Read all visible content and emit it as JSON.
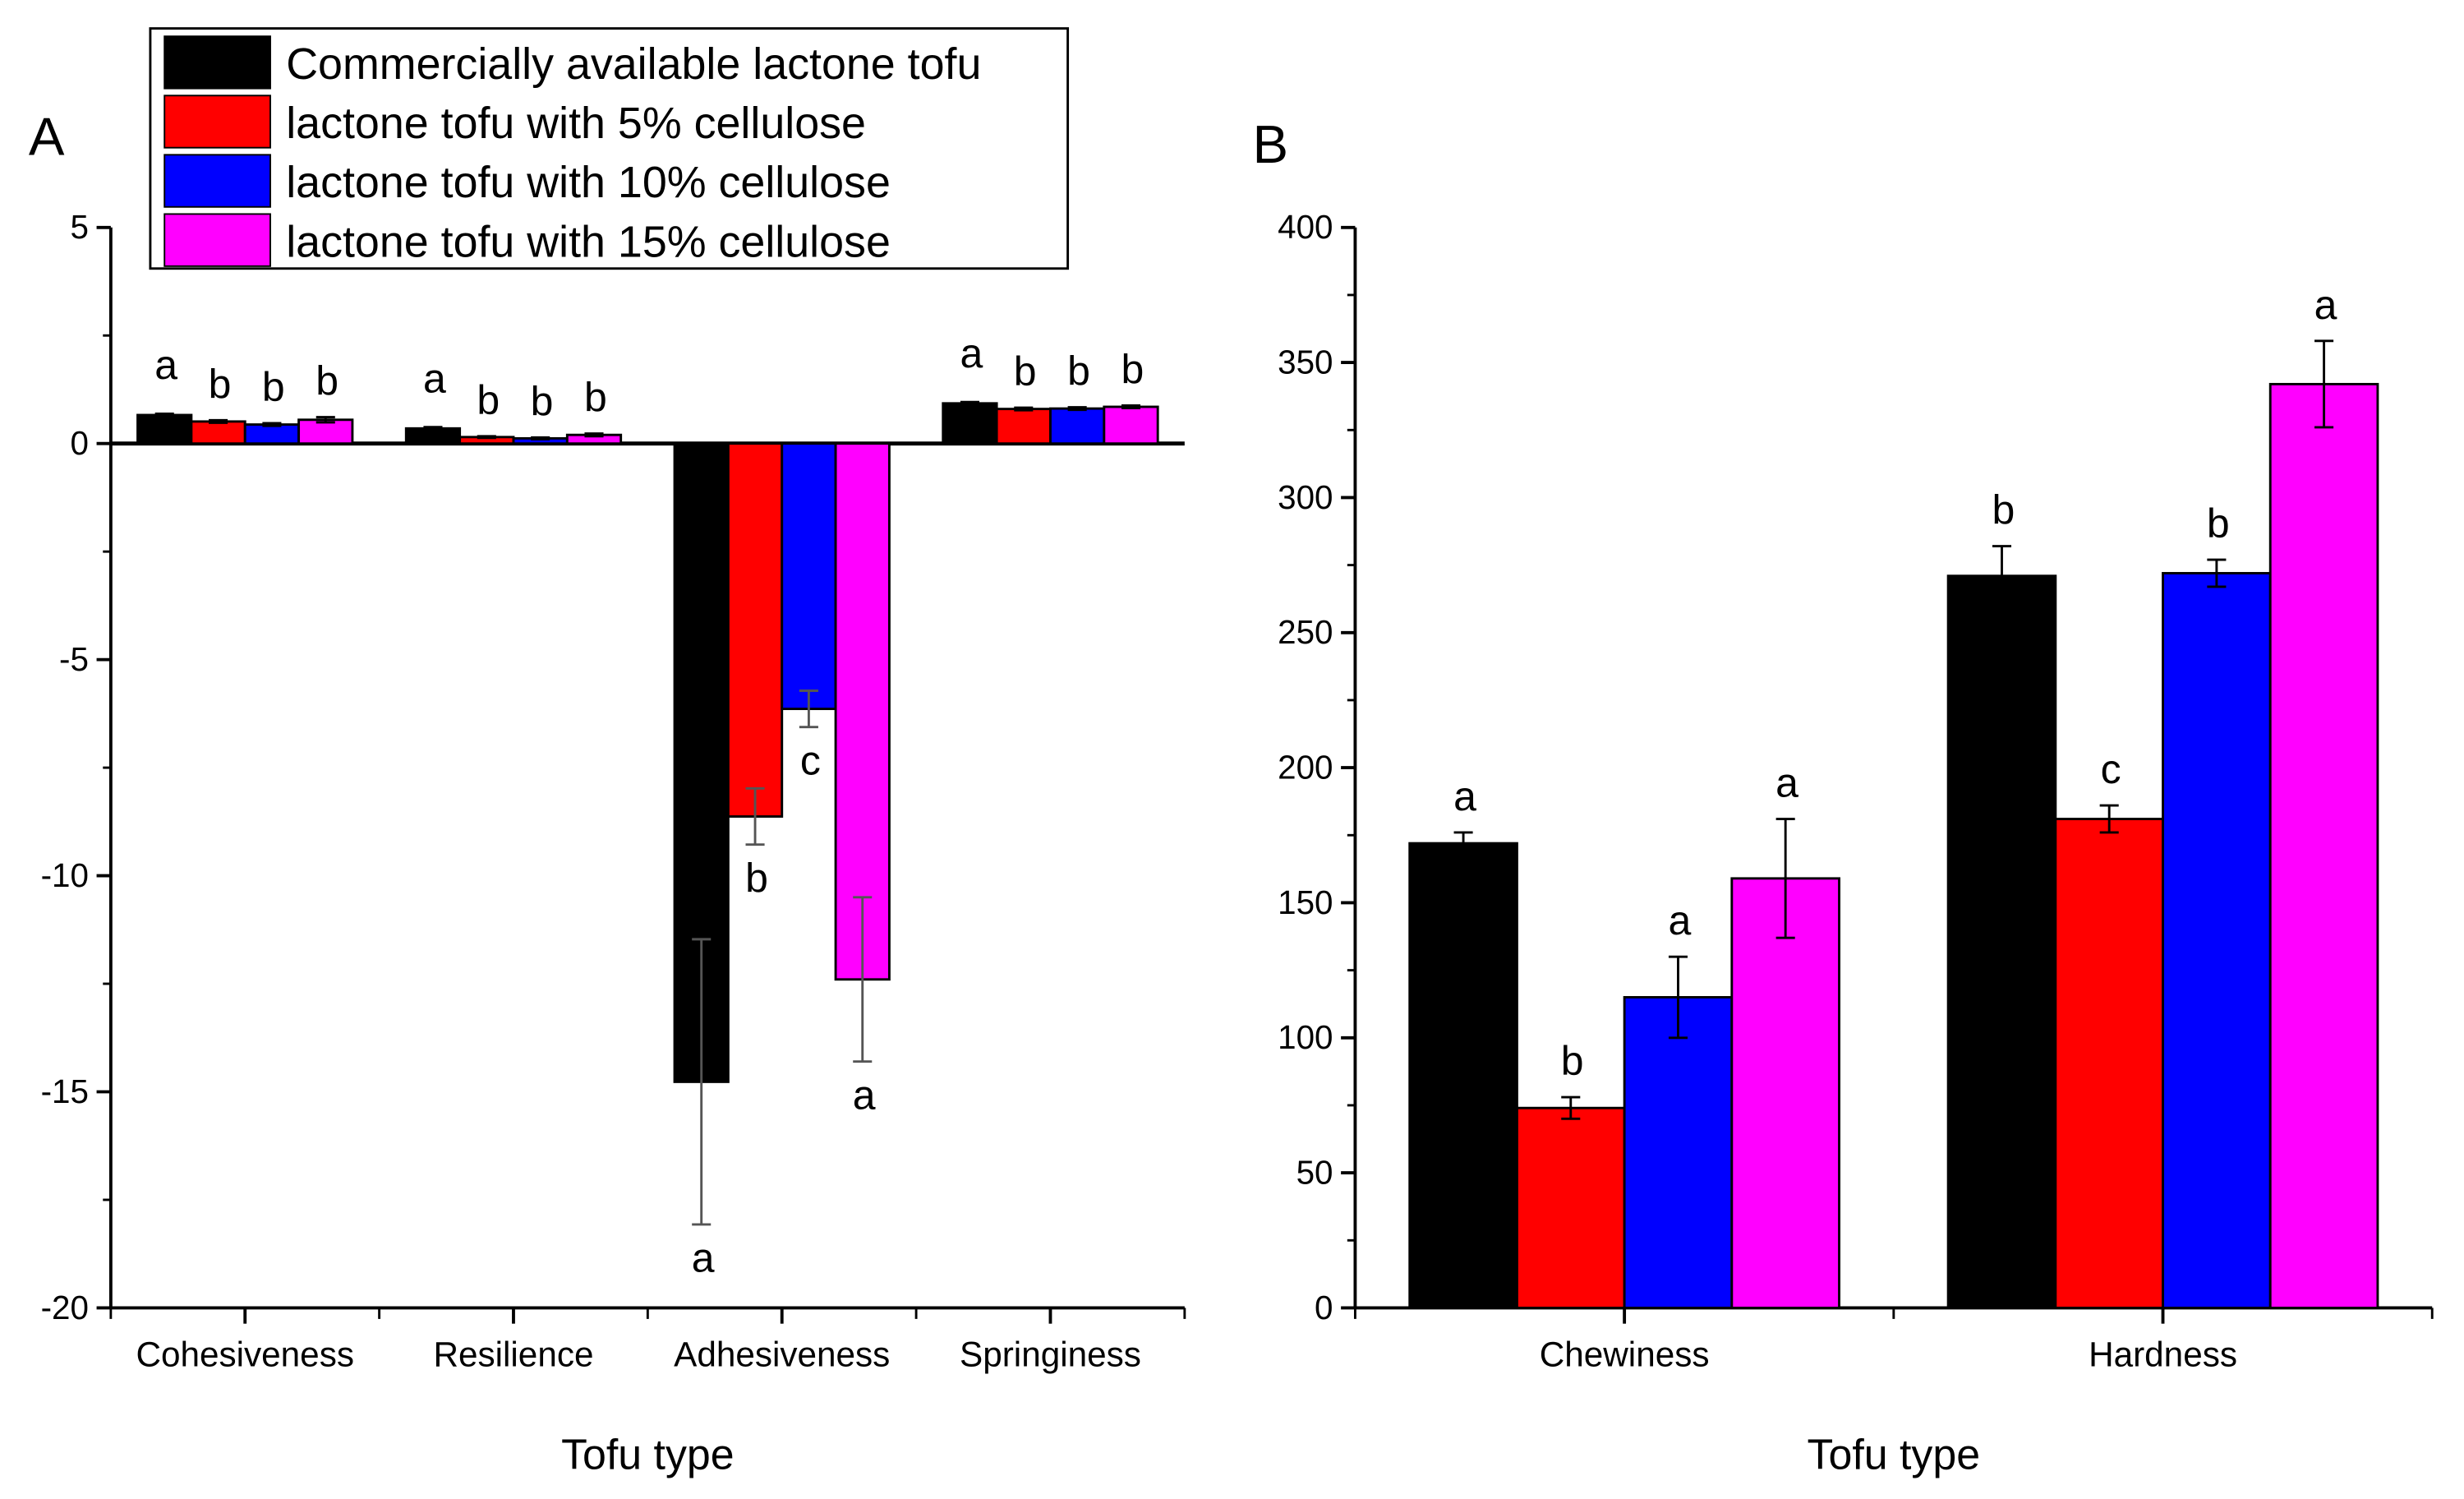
{
  "legend": {
    "entries": [
      {
        "label": "Commercially available lactone tofu",
        "color": "#000000"
      },
      {
        "label": "lactone tofu with 5% cellulose",
        "color": "#ff0000"
      },
      {
        "label": "lactone tofu with 10% cellulose",
        "color": "#0000ff"
      },
      {
        "label": "lactone tofu with 15% cellulose",
        "color": "#ff00ff"
      }
    ],
    "placement": "top-left"
  },
  "chart_data": [
    {
      "panel": "A",
      "type": "bar",
      "xlabel": "Tofu type",
      "ylabel": "",
      "ylim": [
        -20,
        5
      ],
      "yticks": [
        5,
        0,
        -5,
        -10,
        -15,
        -20
      ],
      "categories": [
        "Cohesiveness",
        "Resilience",
        "Adhesiveness",
        "Springiness"
      ],
      "series": [
        {
          "name": "Commercially available lactone tofu",
          "values": [
            0.66,
            0.35,
            -14.77,
            0.93
          ],
          "errors": [
            0.03,
            0.03,
            3.3,
            0.03
          ],
          "letters": [
            "a",
            "a",
            "a",
            "a"
          ]
        },
        {
          "name": "lactone tofu with 5% cellulose",
          "values": [
            0.51,
            0.15,
            -8.63,
            0.8
          ],
          "errors": [
            0.03,
            0.02,
            0.65,
            0.03
          ],
          "letters": [
            "b",
            "b",
            "b",
            "b"
          ]
        },
        {
          "name": "lactone tofu with 10% cellulose",
          "values": [
            0.44,
            0.12,
            -6.14,
            0.81
          ],
          "errors": [
            0.03,
            0.02,
            0.42,
            0.03
          ],
          "letters": [
            "b",
            "b",
            "c",
            "b"
          ]
        },
        {
          "name": "lactone tofu with 15% cellulose",
          "values": [
            0.55,
            0.2,
            -12.4,
            0.85
          ],
          "errors": [
            0.06,
            0.03,
            1.9,
            0.03
          ],
          "letters": [
            "b",
            "b",
            "a",
            "b"
          ]
        }
      ]
    },
    {
      "panel": "B",
      "type": "bar",
      "xlabel": "Tofu type",
      "ylabel": "",
      "ylim": [
        0,
        400
      ],
      "yticks": [
        0,
        50,
        100,
        150,
        200,
        250,
        300,
        350,
        400
      ],
      "categories": [
        "Chewiness",
        "Hardness"
      ],
      "series": [
        {
          "name": "Commercially available lactone tofu",
          "values": [
            172,
            271
          ],
          "errors": [
            4,
            11
          ],
          "letters": [
            "a",
            "b"
          ]
        },
        {
          "name": "lactone tofu with 5% cellulose",
          "values": [
            74,
            181
          ],
          "errors": [
            4,
            5
          ],
          "letters": [
            "b",
            "c"
          ]
        },
        {
          "name": "lactone tofu with 10% cellulose",
          "values": [
            115,
            272
          ],
          "errors": [
            15,
            5
          ],
          "letters": [
            "a",
            "b"
          ]
        },
        {
          "name": "lactone tofu with 15% cellulose",
          "values": [
            159,
            342
          ],
          "errors": [
            22,
            16
          ],
          "letters": [
            "a",
            "a"
          ]
        }
      ]
    }
  ]
}
